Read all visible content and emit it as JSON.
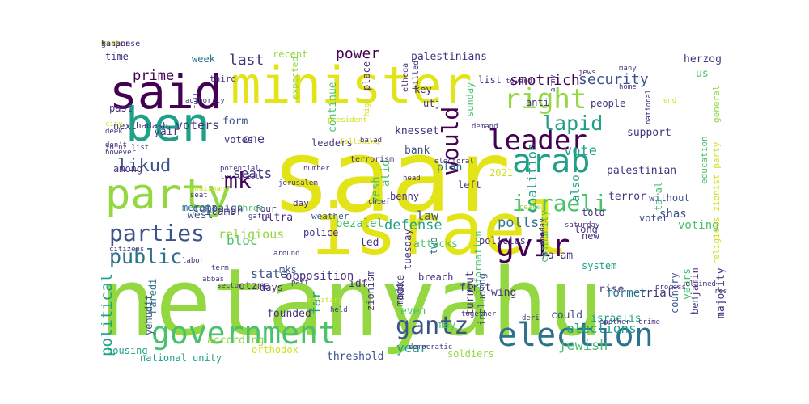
{
  "colors": {
    "yellow": "#e3e418",
    "lime": "#93d741",
    "green": "#4ac16d",
    "teal": "#1fa187",
    "blue": "#2c728e",
    "indigo": "#3b528b",
    "purple": "#440154",
    "violet": "#46327e",
    "light": "#cfe11c"
  },
  "words": [
    {
      "t": "saar",
      "c": "yellow"
    },
    {
      "t": "netanyahu",
      "c": "lime"
    },
    {
      "t": "minister",
      "c": "yellow"
    },
    {
      "t": "israel",
      "c": "yellow"
    },
    {
      "t": "said",
      "c": "purple"
    },
    {
      "t": "party",
      "c": "lime"
    },
    {
      "t": "ben",
      "c": "teal"
    },
    {
      "t": "government",
      "c": "green"
    },
    {
      "t": "election",
      "c": "blue"
    },
    {
      "t": "right",
      "c": "lime"
    },
    {
      "t": "arab",
      "c": "teal"
    },
    {
      "t": "gvir",
      "c": "purple"
    },
    {
      "t": "leader",
      "c": "purple"
    },
    {
      "t": "parties",
      "c": "indigo"
    },
    {
      "t": "lapid",
      "c": "teal"
    },
    {
      "t": "would",
      "c": "purple"
    },
    {
      "t": "israeli",
      "c": "green"
    },
    {
      "t": "likud",
      "c": "indigo"
    },
    {
      "t": "gantz",
      "c": "indigo"
    },
    {
      "t": "mk",
      "c": "purple"
    },
    {
      "t": "smotrich",
      "c": "purple"
    },
    {
      "t": "security",
      "c": "indigo"
    },
    {
      "t": "power",
      "c": "purple"
    },
    {
      "t": "prime",
      "c": "purple"
    },
    {
      "t": "last",
      "c": "violet"
    },
    {
      "t": "voters",
      "c": "violet"
    },
    {
      "t": "one",
      "c": "violet"
    },
    {
      "t": "seats",
      "c": "violet"
    },
    {
      "t": "bloc",
      "c": "green"
    },
    {
      "t": "public",
      "c": "blue"
    },
    {
      "t": "state",
      "c": "indigo"
    },
    {
      "t": "political",
      "c": "teal"
    },
    {
      "t": "polls",
      "c": "blue"
    },
    {
      "t": "defense",
      "c": "teal"
    },
    {
      "t": "law",
      "c": "indigo"
    },
    {
      "t": "vote",
      "c": "teal"
    },
    {
      "t": "coalition",
      "c": "teal"
    },
    {
      "t": "elections",
      "c": "teal"
    },
    {
      "t": "jewish",
      "c": "green"
    },
    {
      "t": "year",
      "c": "teal"
    },
    {
      "t": "religious",
      "c": "lime"
    },
    {
      "t": "opposition",
      "c": "violet"
    },
    {
      "t": "far",
      "c": "teal"
    },
    {
      "t": "yesh",
      "c": "green"
    },
    {
      "t": "atid",
      "c": "green"
    },
    {
      "t": "also",
      "c": "teal"
    },
    {
      "t": "knesset",
      "c": "violet"
    },
    {
      "t": "bank",
      "c": "indigo"
    },
    {
      "t": "palestinians",
      "c": "violet"
    },
    {
      "t": "campaign",
      "c": "indigo"
    },
    {
      "t": "form",
      "c": "indigo"
    },
    {
      "t": "mks",
      "c": "indigo"
    },
    {
      "t": "west",
      "c": "indigo"
    },
    {
      "t": "ultra",
      "c": "violet"
    },
    {
      "t": "police",
      "c": "violet"
    },
    {
      "t": "plan",
      "c": "blue"
    },
    {
      "t": "left",
      "c": "violet"
    },
    {
      "t": "four",
      "c": "violet"
    },
    {
      "t": "day",
      "c": "violet"
    },
    {
      "t": "weather",
      "c": "indigo"
    },
    {
      "t": "support",
      "c": "violet"
    },
    {
      "t": "palestinian",
      "c": "violet"
    },
    {
      "t": "terror",
      "c": "violet"
    },
    {
      "t": "voter",
      "c": "indigo"
    },
    {
      "t": "without",
      "c": "indigo"
    },
    {
      "t": "shas",
      "c": "indigo"
    },
    {
      "t": "voting",
      "c": "green"
    },
    {
      "t": "herzog",
      "c": "violet"
    },
    {
      "t": "us",
      "c": "green"
    },
    {
      "t": "general",
      "c": "lime"
    },
    {
      "t": "education",
      "c": "green"
    },
    {
      "t": "religious zionist party",
      "c": "light"
    },
    {
      "t": "ta'al",
      "c": "green"
    },
    {
      "t": "years",
      "c": "green"
    },
    {
      "t": "country",
      "c": "indigo"
    },
    {
      "t": "majority",
      "c": "violet"
    },
    {
      "t": "benjamin",
      "c": "violet"
    },
    {
      "t": "rise",
      "c": "violet"
    },
    {
      "t": "trial",
      "c": "violet"
    },
    {
      "t": "israelis",
      "c": "teal"
    },
    {
      "t": "former",
      "c": "blue"
    },
    {
      "t": "system",
      "c": "teal"
    },
    {
      "t": "otzma",
      "c": "violet"
    },
    {
      "t": "yehudit",
      "c": "indigo"
    },
    {
      "t": "according",
      "c": "lime"
    },
    {
      "t": "national unity",
      "c": "teal"
    },
    {
      "t": "housing",
      "c": "teal"
    },
    {
      "t": "haredi",
      "c": "blue"
    },
    {
      "t": "days",
      "c": "violet"
    },
    {
      "t": "zionism",
      "c": "violet"
    },
    {
      "t": "idf",
      "c": "violet"
    },
    {
      "t": "made",
      "c": "violet"
    },
    {
      "t": "even",
      "c": "green"
    },
    {
      "t": "first",
      "c": "violet"
    },
    {
      "t": "may",
      "c": "green"
    },
    {
      "t": "wing",
      "c": "violet"
    },
    {
      "t": "could",
      "c": "indigo"
    },
    {
      "t": "threshold",
      "c": "indigo"
    },
    {
      "t": "orthodox",
      "c": "light"
    },
    {
      "t": "founded",
      "c": "violet"
    },
    {
      "t": "itamar",
      "c": "violet"
    },
    {
      "t": "meretz",
      "c": "blue"
    },
    {
      "t": "led",
      "c": "violet"
    },
    {
      "t": "bezalel",
      "c": "green"
    },
    {
      "t": "two",
      "c": "blue"
    },
    {
      "t": "attacks",
      "c": "green"
    },
    {
      "t": "breach",
      "c": "violet"
    },
    {
      "t": "turnout",
      "c": "violet"
    },
    {
      "t": "ra'am",
      "c": "violet"
    },
    {
      "t": "policies",
      "c": "violet"
    },
    {
      "t": "long",
      "c": "violet"
    },
    {
      "t": "told",
      "c": "violet"
    },
    {
      "t": "new",
      "c": "violet"
    },
    {
      "t": "including",
      "c": "indigo"
    },
    {
      "t": "information",
      "c": "green"
    },
    {
      "t": "make",
      "c": "violet"
    },
    {
      "t": "tuesday",
      "c": "violet"
    },
    {
      "t": "three",
      "c": "green"
    },
    {
      "t": "next",
      "c": "violet"
    },
    {
      "t": "among",
      "c": "violet"
    },
    {
      "t": "yair",
      "c": "violet"
    },
    {
      "t": "hadash",
      "c": "violet"
    },
    {
      "t": "past",
      "c": "violet"
    },
    {
      "t": "time",
      "c": "violet"
    },
    {
      "t": "week",
      "c": "blue"
    },
    {
      "t": "third",
      "c": "violet"
    },
    {
      "t": "recent",
      "c": "lime"
    },
    {
      "t": "expected",
      "c": "lime"
    },
    {
      "t": "continue",
      "c": "green"
    },
    {
      "t": "place",
      "c": "violet"
    },
    {
      "t": "key",
      "c": "violet"
    },
    {
      "t": "utj",
      "c": "violet"
    },
    {
      "t": "list",
      "c": "violet"
    },
    {
      "t": "anti",
      "c": "violet"
    },
    {
      "t": "people",
      "c": "violet"
    },
    {
      "t": "sunday",
      "c": "green"
    },
    {
      "t": "2021",
      "c": "light"
    },
    {
      "t": "community",
      "c": "green"
    },
    {
      "t": "benny",
      "c": "violet"
    },
    {
      "t": "leaders",
      "c": "violet"
    },
    {
      "t": "votes",
      "c": "violet"
    },
    {
      "t": "soldiers",
      "c": "lime"
    },
    {
      "t": "elhega",
      "c": "violet"
    },
    {
      "t": "killed",
      "c": "violet"
    },
    {
      "t": "high",
      "c": "light"
    },
    {
      "t": "president",
      "c": "light"
    },
    {
      "t": "terrorism",
      "c": "violet"
    },
    {
      "t": "following",
      "c": "light"
    },
    {
      "t": "balad",
      "c": "violet"
    },
    {
      "t": "jerusalem",
      "c": "violet"
    },
    {
      "t": "chief",
      "c": "violet"
    },
    {
      "t": "head",
      "c": "violet"
    },
    {
      "t": "democratic",
      "c": "violet"
    },
    {
      "t": "electoral",
      "c": "violet"
    },
    {
      "t": "demand",
      "c": "violet"
    },
    {
      "t": "toward",
      "c": "violet"
    },
    {
      "t": "home",
      "c": "violet"
    },
    {
      "t": "many",
      "c": "violet"
    },
    {
      "t": "end",
      "c": "light"
    },
    {
      "t": "national",
      "c": "violet"
    },
    {
      "t": "city",
      "c": "light"
    },
    {
      "t": "deek",
      "c": "violet"
    },
    {
      "t": "authority",
      "c": "violet"
    },
    {
      "t": "full",
      "c": "violet"
    },
    {
      "t": "jews",
      "c": "violet"
    },
    {
      "t": "army",
      "c": "violet"
    },
    {
      "t": "however",
      "c": "violet"
    },
    {
      "t": "joint list",
      "c": "violet"
    },
    {
      "t": "don't",
      "c": "violet"
    },
    {
      "t": "potential",
      "c": "violet"
    },
    {
      "t": "terrorists",
      "c": "violet"
    },
    {
      "t": "seat",
      "c": "violet"
    },
    {
      "t": "chairman",
      "c": "light"
    },
    {
      "t": "gafni",
      "c": "violet"
    },
    {
      "t": "around",
      "c": "violet"
    },
    {
      "t": "part",
      "c": "violet"
    },
    {
      "t": "held",
      "c": "violet"
    },
    {
      "t": "military",
      "c": "light"
    },
    {
      "t": "together",
      "c": "violet"
    },
    {
      "t": "deri",
      "c": "violet"
    },
    {
      "t": "saturday",
      "c": "violet"
    },
    {
      "t": "monday",
      "c": "violet"
    },
    {
      "t": "another",
      "c": "violet"
    },
    {
      "t": "crime",
      "c": "violet"
    },
    {
      "t": "process",
      "c": "violet"
    },
    {
      "t": "claimed",
      "c": "violet"
    },
    {
      "t": "results",
      "c": "violet"
    },
    {
      "t": "term",
      "c": "violet"
    },
    {
      "t": "labor",
      "c": "violet"
    },
    {
      "t": "abbas",
      "c": "violet"
    },
    {
      "t": "sector",
      "c": "violet"
    },
    {
      "t": "citizens",
      "c": "violet"
    },
    {
      "t": "peace",
      "c": "lime"
    },
    {
      "t": "number",
      "c": "violet"
    },
    {
      "t": "like",
      "c": "light"
    },
    {
      "t": "response",
      "c": "violet"
    },
    {
      "t": "go",
      "c": "violet"
    },
    {
      "t": "work",
      "c": "light"
    },
    {
      "t": "kahane",
      "c": "violet"
    }
  ]
}
